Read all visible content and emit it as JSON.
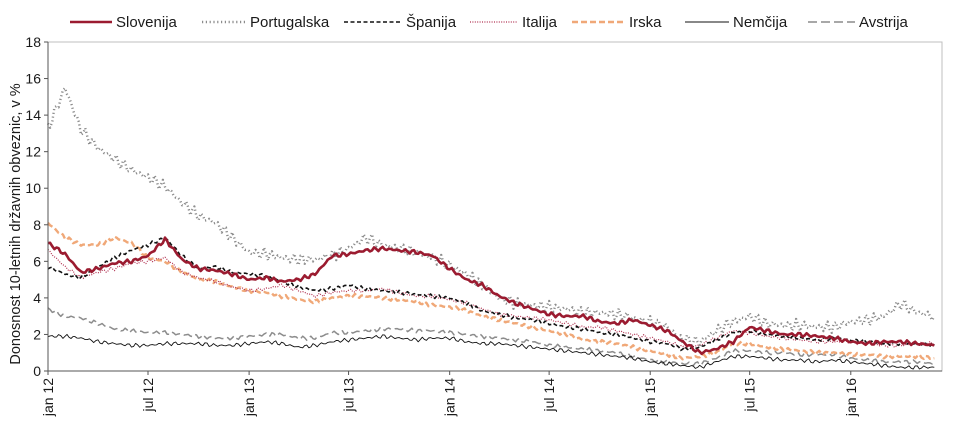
{
  "chart_data": {
    "type": "line",
    "title": "",
    "xlabel": "",
    "ylabel": "Donosnost 10-letnih državnih obveznic, v %",
    "ylim": [
      0,
      18
    ],
    "yticks": [
      0,
      2,
      4,
      6,
      8,
      10,
      12,
      14,
      16,
      18
    ],
    "xlim": [
      "2012-01-01",
      "2016-06-15"
    ],
    "xticks": [
      {
        "date": "2012-01-01",
        "label": "jan 12"
      },
      {
        "date": "2012-07-01",
        "label": "jul 12"
      },
      {
        "date": "2013-01-01",
        "label": "jan 13"
      },
      {
        "date": "2013-07-01",
        "label": "jul 13"
      },
      {
        "date": "2014-01-01",
        "label": "jan 14"
      },
      {
        "date": "2014-07-01",
        "label": "jul 14"
      },
      {
        "date": "2015-01-01",
        "label": "jan 15"
      },
      {
        "date": "2015-07-01",
        "label": "jul 15"
      },
      {
        "date": "2016-01-01",
        "label": "jan 16"
      }
    ],
    "grid": false,
    "legend_position": "top",
    "x": [
      "2012-01-01",
      "2012-02-01",
      "2012-03-01",
      "2012-04-01",
      "2012-05-01",
      "2012-06-01",
      "2012-07-01",
      "2012-08-01",
      "2012-09-01",
      "2012-10-01",
      "2012-11-01",
      "2012-12-01",
      "2013-01-01",
      "2013-02-01",
      "2013-03-01",
      "2013-04-01",
      "2013-05-01",
      "2013-06-01",
      "2013-07-01",
      "2013-08-01",
      "2013-09-01",
      "2013-10-01",
      "2013-11-01",
      "2013-12-01",
      "2014-01-01",
      "2014-02-01",
      "2014-03-01",
      "2014-04-01",
      "2014-05-01",
      "2014-06-01",
      "2014-07-01",
      "2014-08-01",
      "2014-09-01",
      "2014-10-01",
      "2014-11-01",
      "2014-12-01",
      "2015-01-01",
      "2015-02-01",
      "2015-03-01",
      "2015-04-01",
      "2015-05-01",
      "2015-06-01",
      "2015-07-01",
      "2015-08-01",
      "2015-09-01",
      "2015-10-01",
      "2015-11-01",
      "2015-12-01",
      "2016-01-01",
      "2016-02-01",
      "2016-03-01",
      "2016-04-01",
      "2016-05-01",
      "2016-06-01"
    ],
    "series": [
      {
        "name": "Slovenija",
        "color": "#9b1b30",
        "dash": "",
        "width": 2.6,
        "values": [
          7.0,
          6.4,
          5.4,
          5.6,
          5.9,
          6.0,
          6.3,
          7.2,
          6.1,
          5.6,
          5.5,
          5.3,
          5.0,
          5.1,
          4.9,
          5.0,
          5.3,
          6.3,
          6.4,
          6.6,
          6.7,
          6.6,
          6.5,
          6.3,
          5.6,
          5.0,
          4.7,
          4.1,
          3.7,
          3.4,
          3.1,
          3.0,
          3.0,
          2.7,
          2.6,
          2.8,
          2.5,
          2.2,
          1.6,
          1.0,
          1.2,
          1.6,
          2.4,
          2.2,
          2.0,
          2.0,
          1.9,
          1.8,
          1.6,
          1.5,
          1.6,
          1.6,
          1.5,
          1.4
        ]
      },
      {
        "name": "Portugalska",
        "color": "#8c8c8c",
        "dash": "1.2 2.6",
        "width": 2.4,
        "values": [
          13.3,
          15.5,
          13.2,
          12.2,
          11.6,
          11.0,
          10.6,
          10.1,
          9.2,
          8.5,
          8.1,
          7.3,
          6.5,
          6.4,
          6.2,
          6.1,
          6.1,
          6.3,
          6.7,
          7.3,
          6.9,
          6.7,
          6.5,
          6.2,
          5.8,
          5.3,
          4.7,
          4.0,
          3.7,
          3.6,
          3.5,
          3.4,
          3.2,
          3.2,
          3.1,
          2.9,
          2.7,
          2.4,
          1.7,
          1.6,
          2.2,
          2.7,
          3.0,
          2.6,
          2.5,
          2.5,
          2.4,
          2.4,
          2.7,
          2.8,
          3.0,
          3.7,
          3.2,
          3.0
        ]
      },
      {
        "name": "Španija",
        "color": "#111111",
        "dash": "4 2.5",
        "width": 1.6,
        "values": [
          5.7,
          5.3,
          5.1,
          5.7,
          6.2,
          6.6,
          6.9,
          7.3,
          6.3,
          5.6,
          5.7,
          5.4,
          5.3,
          5.2,
          4.9,
          4.6,
          4.4,
          4.5,
          4.7,
          4.5,
          4.4,
          4.3,
          4.2,
          4.1,
          4.0,
          3.7,
          3.3,
          3.1,
          2.9,
          2.8,
          2.6,
          2.4,
          2.3,
          2.1,
          2.0,
          1.8,
          1.6,
          1.5,
          1.2,
          1.3,
          1.7,
          2.1,
          2.2,
          2.0,
          1.9,
          1.8,
          1.7,
          1.8,
          1.7,
          1.6,
          1.5,
          1.5,
          1.5,
          1.4
        ]
      },
      {
        "name": "Italija",
        "color": "#b03050",
        "dash": "1 1.4",
        "width": 1.2,
        "values": [
          6.6,
          5.7,
          5.1,
          5.4,
          5.6,
          5.9,
          6.0,
          6.2,
          5.4,
          5.1,
          4.9,
          4.6,
          4.4,
          4.5,
          4.7,
          4.4,
          4.1,
          4.3,
          4.4,
          4.4,
          4.5,
          4.3,
          4.1,
          4.1,
          3.9,
          3.7,
          3.4,
          3.1,
          3.0,
          2.9,
          2.8,
          2.6,
          2.4,
          2.4,
          2.2,
          2.0,
          1.8,
          1.6,
          1.3,
          1.4,
          1.8,
          2.2,
          2.1,
          1.9,
          1.8,
          1.7,
          1.6,
          1.6,
          1.6,
          1.5,
          1.4,
          1.4,
          1.5,
          1.5
        ]
      },
      {
        "name": "Irska",
        "color": "#f0a878",
        "dash": "6 3",
        "width": 2.4,
        "values": [
          8.1,
          7.3,
          6.9,
          6.9,
          7.3,
          7.0,
          6.2,
          6.0,
          5.4,
          5.0,
          4.9,
          4.6,
          4.4,
          4.3,
          4.1,
          3.9,
          3.8,
          4.0,
          4.1,
          4.1,
          4.0,
          3.9,
          3.8,
          3.6,
          3.5,
          3.3,
          3.0,
          2.8,
          2.6,
          2.4,
          2.2,
          2.0,
          1.7,
          1.6,
          1.5,
          1.3,
          1.1,
          0.9,
          0.7,
          0.8,
          1.0,
          1.5,
          1.5,
          1.3,
          1.2,
          1.1,
          1.0,
          1.0,
          0.9,
          0.9,
          0.8,
          0.8,
          0.8,
          0.7
        ]
      },
      {
        "name": "Nemčija",
        "color": "#111111",
        "dash": "",
        "width": 0.9,
        "values": [
          1.9,
          1.9,
          1.8,
          1.6,
          1.5,
          1.4,
          1.4,
          1.5,
          1.5,
          1.5,
          1.4,
          1.4,
          1.5,
          1.6,
          1.5,
          1.3,
          1.4,
          1.6,
          1.7,
          1.8,
          1.9,
          1.8,
          1.7,
          1.8,
          1.8,
          1.6,
          1.5,
          1.5,
          1.4,
          1.3,
          1.2,
          1.1,
          1.0,
          0.9,
          0.8,
          0.7,
          0.5,
          0.4,
          0.3,
          0.2,
          0.5,
          0.8,
          0.8,
          0.7,
          0.6,
          0.6,
          0.5,
          0.6,
          0.5,
          0.4,
          0.3,
          0.2,
          0.2,
          0.2
        ]
      },
      {
        "name": "Avstrija",
        "color": "#8c8c8c",
        "dash": "9 4",
        "width": 1.5,
        "values": [
          3.4,
          3.0,
          2.9,
          2.6,
          2.3,
          2.2,
          2.1,
          2.1,
          2.0,
          1.9,
          1.8,
          1.8,
          1.9,
          2.0,
          2.0,
          1.8,
          1.8,
          2.1,
          2.1,
          2.2,
          2.3,
          2.3,
          2.2,
          2.2,
          2.1,
          2.0,
          1.9,
          1.8,
          1.7,
          1.6,
          1.4,
          1.3,
          1.2,
          1.1,
          1.0,
          0.8,
          0.6,
          0.5,
          0.4,
          0.4,
          0.7,
          1.1,
          1.1,
          1.0,
          1.0,
          0.9,
          0.9,
          0.9,
          0.7,
          0.6,
          0.5,
          0.5,
          0.5,
          0.4
        ]
      }
    ]
  }
}
